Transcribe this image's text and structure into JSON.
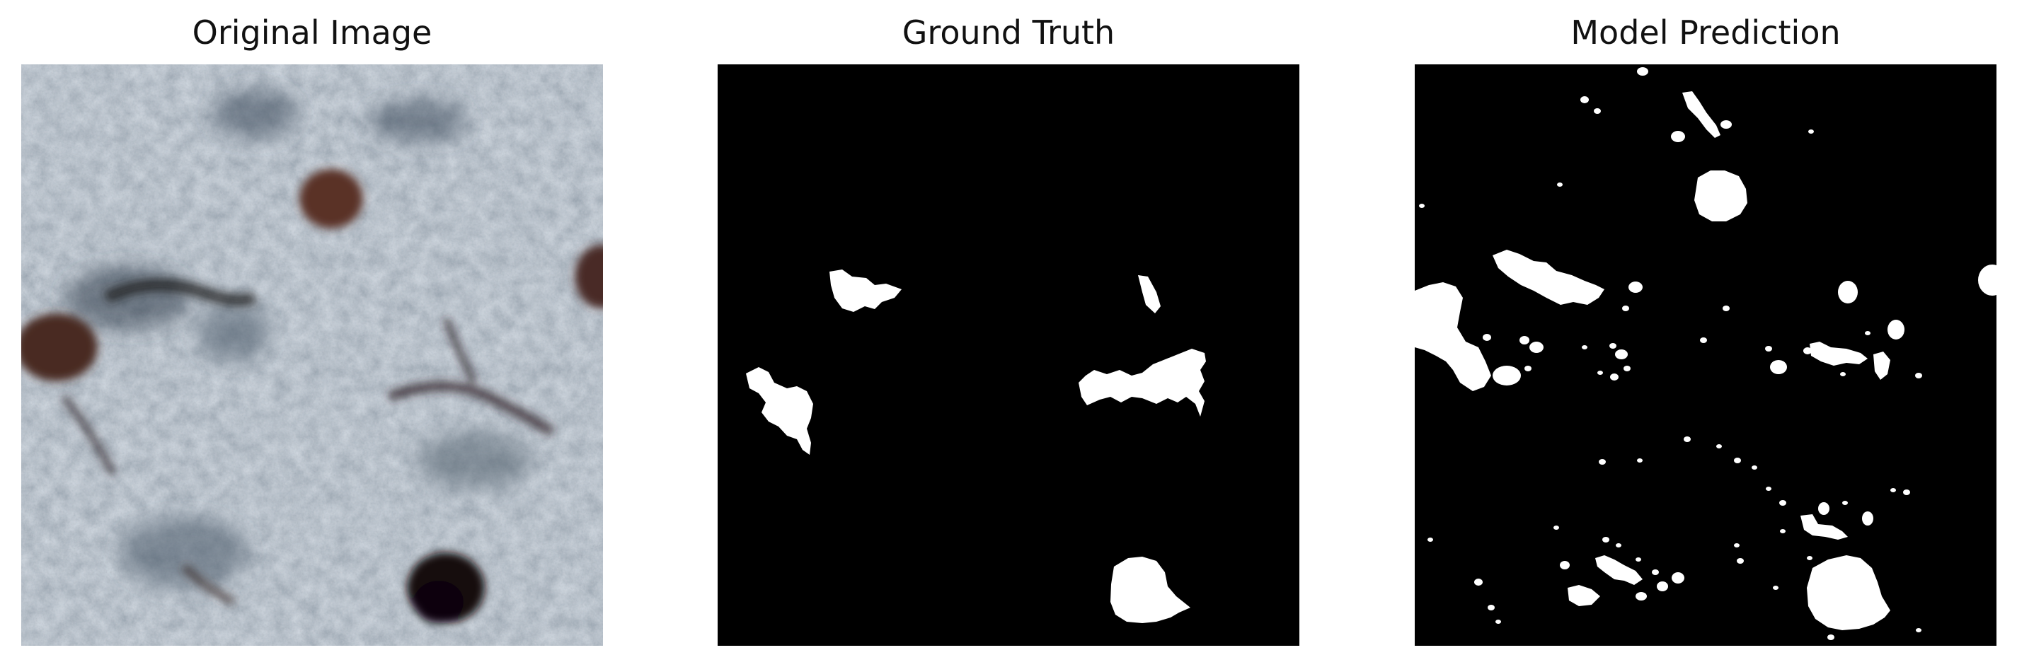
{
  "figure": {
    "panels": [
      {
        "title": "Original Image",
        "content": "microscopy-tissue-image"
      },
      {
        "title": "Ground Truth",
        "content": "binary-mask"
      },
      {
        "title": "Model Prediction",
        "content": "binary-mask"
      }
    ]
  },
  "colors": {
    "background": "#ffffff",
    "mask_background": "#000000",
    "mask_foreground": "#ffffff",
    "tissue_base": "#8a9aa6",
    "nucleus_dark": "#3a1e1a"
  }
}
